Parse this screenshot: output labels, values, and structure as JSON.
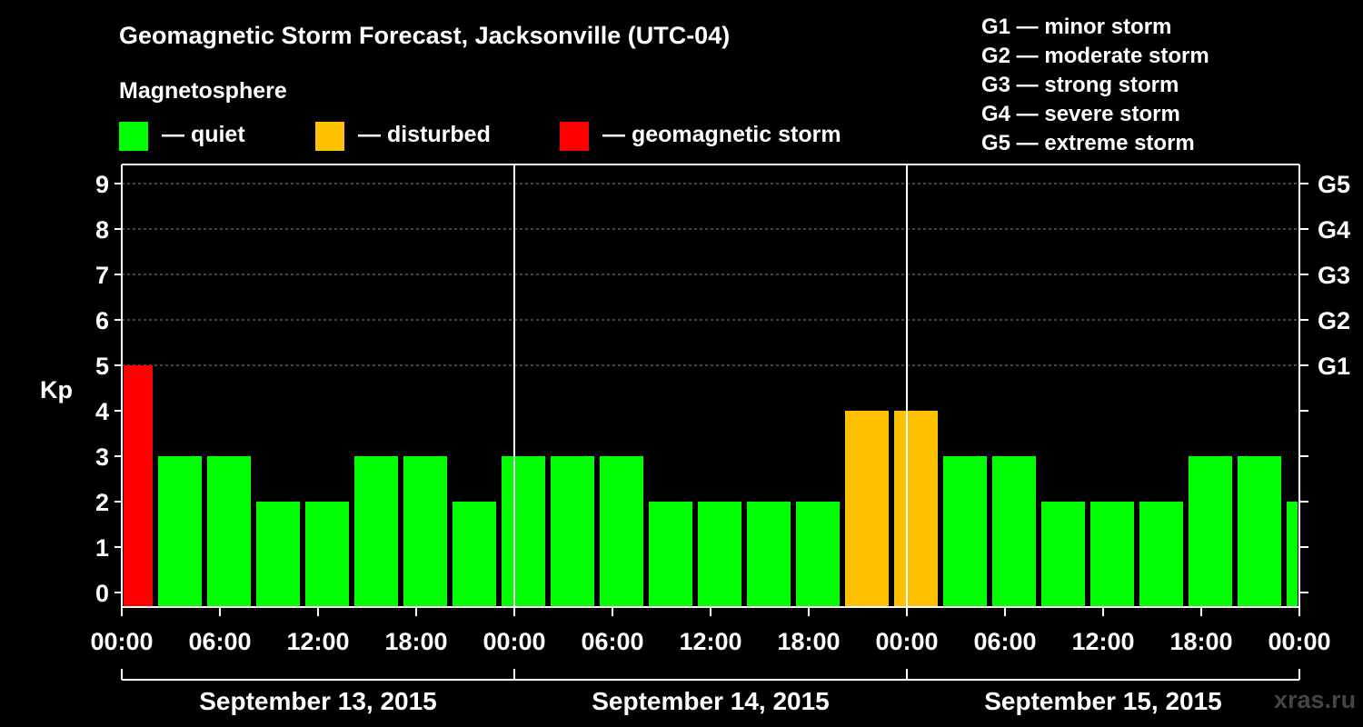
{
  "title": "Geomagnetic Storm Forecast, Jacksonville (UTC-04)",
  "magnetosphere_label": "Magnetosphere",
  "legend": [
    {
      "label": "— quiet",
      "color": "#00ff00"
    },
    {
      "label": "— disturbed",
      "color": "#ffc000"
    },
    {
      "label": "— geomagnetic storm",
      "color": "#ff0000"
    }
  ],
  "g_legend": [
    "G1 — minor storm",
    "G2 — moderate storm",
    "G3 — strong storm",
    "G4 — severe storm",
    "G5 — extreme storm"
  ],
  "watermark": "xras.ru",
  "chart_data": {
    "type": "bar",
    "ylabel": "Kp",
    "ylim": [
      0,
      9
    ],
    "yticks": [
      "0",
      "1",
      "2",
      "3",
      "4",
      "5",
      "6",
      "7",
      "8",
      "9"
    ],
    "right_ticks": [
      {
        "kp": 5,
        "label": "G1"
      },
      {
        "kp": 6,
        "label": "G2"
      },
      {
        "kp": 7,
        "label": "G3"
      },
      {
        "kp": 8,
        "label": "G4"
      },
      {
        "kp": 9,
        "label": "G5"
      }
    ],
    "x_tick_labels": [
      "00:00",
      "06:00",
      "12:00",
      "18:00",
      "00:00",
      "06:00",
      "12:00",
      "18:00",
      "00:00",
      "06:00",
      "12:00",
      "18:00",
      "00:00"
    ],
    "days": [
      "September 13, 2015",
      "September 14, 2015",
      "September 15, 2015"
    ],
    "values": [
      5,
      3,
      3,
      2,
      2,
      3,
      3,
      2,
      3,
      3,
      3,
      2,
      2,
      2,
      2,
      4,
      4,
      3,
      3,
      2,
      2,
      2,
      3,
      3,
      2
    ],
    "colors": {
      "quiet": "#00ff00",
      "disturbed": "#ffc000",
      "storm": "#ff0000"
    }
  }
}
